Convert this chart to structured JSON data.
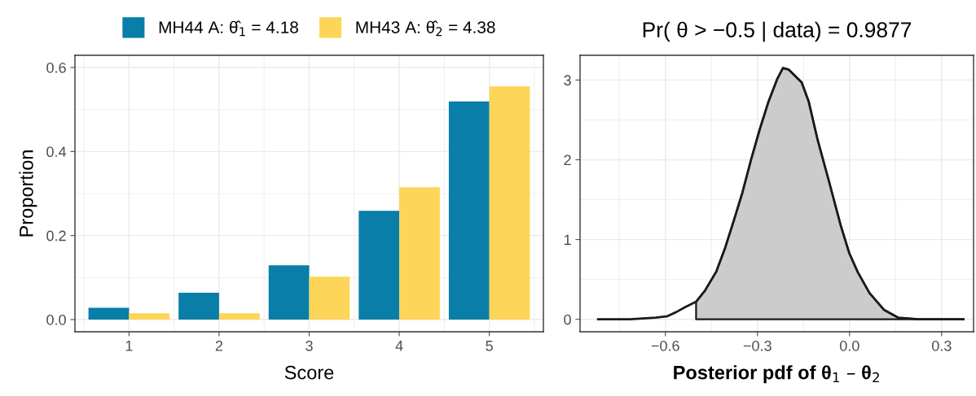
{
  "chart_data": [
    {
      "type": "bar",
      "categories": [
        "1",
        "2",
        "3",
        "4",
        "5"
      ],
      "xlabel": "Score",
      "ylabel": "Proportion",
      "series": [
        {
          "name": "MH44 A: θ̂$_{1}$ = 4.18",
          "color": "#087ea8",
          "values": [
            0.028,
            0.064,
            0.129,
            0.259,
            0.519
          ]
        },
        {
          "name": "MH43 A: θ̂$_{2}$ = 4.38",
          "color": "#fdd558",
          "values": [
            0.015,
            0.015,
            0.102,
            0.315,
            0.555
          ]
        }
      ],
      "ylim": [
        -0.029,
        0.629
      ],
      "yticks": [
        {
          "value": 0,
          "label": "0.0"
        },
        0.2,
        0.4,
        0.6
      ],
      "grid": true,
      "legend": "top"
    },
    {
      "type": "area",
      "title": "Pr( θ > −0.5 | data) = 0.9877",
      "xlabel": "Posterior pdf of θ$_{1}$ – θ$_{2}$",
      "series": [
        {
          "type": "line",
          "color": "#1a1a1a",
          "x": [
            -0.819,
            -0.716,
            -0.631,
            -0.593,
            -0.565,
            -0.537,
            -0.5,
            -0.471,
            -0.434,
            -0.405,
            -0.377,
            -0.349,
            -0.321,
            -0.292,
            -0.264,
            -0.236,
            -0.217,
            -0.198,
            -0.156,
            -0.133,
            -0.104,
            -0.067,
            -0.029,
            -0.001,
            0.027,
            0.065,
            0.112,
            0.159,
            0.225,
            0.371
          ],
          "values": [
            0,
            0,
            0.02,
            0.04,
            0.09,
            0.15,
            0.22,
            0.36,
            0.6,
            0.9,
            1.24,
            1.59,
            2.0,
            2.39,
            2.73,
            3.01,
            3.15,
            3.13,
            2.97,
            2.73,
            2.25,
            1.73,
            1.18,
            0.83,
            0.59,
            0.33,
            0.12,
            0.02,
            0,
            0
          ]
        },
        {
          "type": "area",
          "color": "#cccccc",
          "x": [
            -0.5,
            -0.471,
            -0.434,
            -0.405,
            -0.377,
            -0.349,
            -0.321,
            -0.292,
            -0.264,
            -0.236,
            -0.217,
            -0.198,
            -0.156,
            -0.133,
            -0.104,
            -0.067,
            -0.029,
            -0.001,
            0.027,
            0.065,
            0.112,
            0.159,
            0.225,
            0.371
          ],
          "values": [
            0.22,
            0.36,
            0.6,
            0.9,
            1.24,
            1.59,
            2.0,
            2.39,
            2.73,
            3.01,
            3.15,
            3.13,
            2.97,
            2.73,
            2.25,
            1.73,
            1.18,
            0.83,
            0.59,
            0.33,
            0.12,
            0.02,
            0,
            0
          ]
        }
      ],
      "xlim": [
        -0.878,
        0.404
      ],
      "xticks": [
        {
          "value": -0.6,
          "label": "−0.6"
        },
        {
          "value": -0.3,
          "label": "−0.3"
        },
        {
          "value": 0,
          "label": "0.0"
        },
        {
          "value": 0.3,
          "label": "0.3"
        }
      ],
      "ylim": [
        -0.156,
        3.31
      ],
      "yticks": [
        0,
        1,
        2,
        3
      ],
      "grid": true
    }
  ]
}
